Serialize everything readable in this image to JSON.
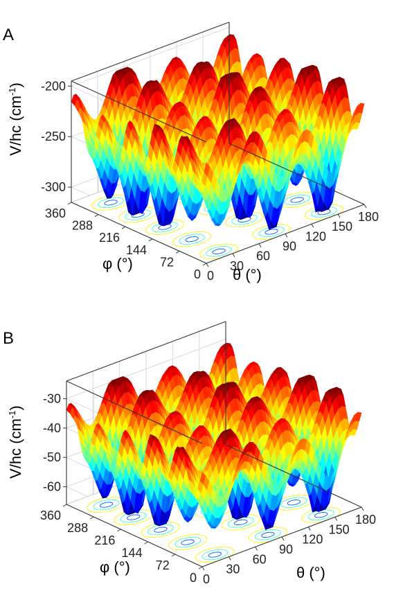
{
  "chart_data": [
    {
      "panel": "A",
      "type": "surface",
      "zlabel": "V/hc (cm",
      "zlabel_sup": "-1",
      "zlabel_close": ")",
      "xlabel": "θ (°)",
      "ylabel": "φ (°)",
      "x_ticks": [
        "0",
        "30",
        "60",
        "90",
        "120",
        "150",
        "180"
      ],
      "y_ticks": [
        "0",
        "72",
        "144",
        "216",
        "288",
        "360"
      ],
      "z_ticks": [
        "-300",
        "-250",
        "-200"
      ],
      "xlim": [
        0,
        180
      ],
      "ylim": [
        0,
        360
      ],
      "zlim": [
        -315,
        -195
      ],
      "model": {
        "z_max": -200,
        "z_min": -312,
        "theta_cycles": 3,
        "phi_cycles": 5
      },
      "colormap": "jet",
      "contours_on_floor": true,
      "grid": true
    },
    {
      "panel": "B",
      "type": "surface",
      "zlabel": "V/hc (cm",
      "zlabel_sup": "-1",
      "zlabel_close": ")",
      "xlabel": "θ (°)",
      "ylabel": "φ (°)",
      "x_ticks": [
        "0",
        "30",
        "60",
        "90",
        "120",
        "150",
        "180"
      ],
      "y_ticks": [
        "0",
        "72",
        "144",
        "216",
        "288",
        "360"
      ],
      "z_ticks": [
        "-60",
        "-50",
        "-40",
        "-30"
      ],
      "xlim": [
        0,
        180
      ],
      "ylim": [
        0,
        360
      ],
      "zlim": [
        -66,
        -24
      ],
      "model": {
        "z_max": -29,
        "z_min": -64,
        "theta_cycles": 3,
        "phi_cycles": 5
      },
      "colormap": "jet",
      "contours_on_floor": true,
      "grid": true
    }
  ]
}
